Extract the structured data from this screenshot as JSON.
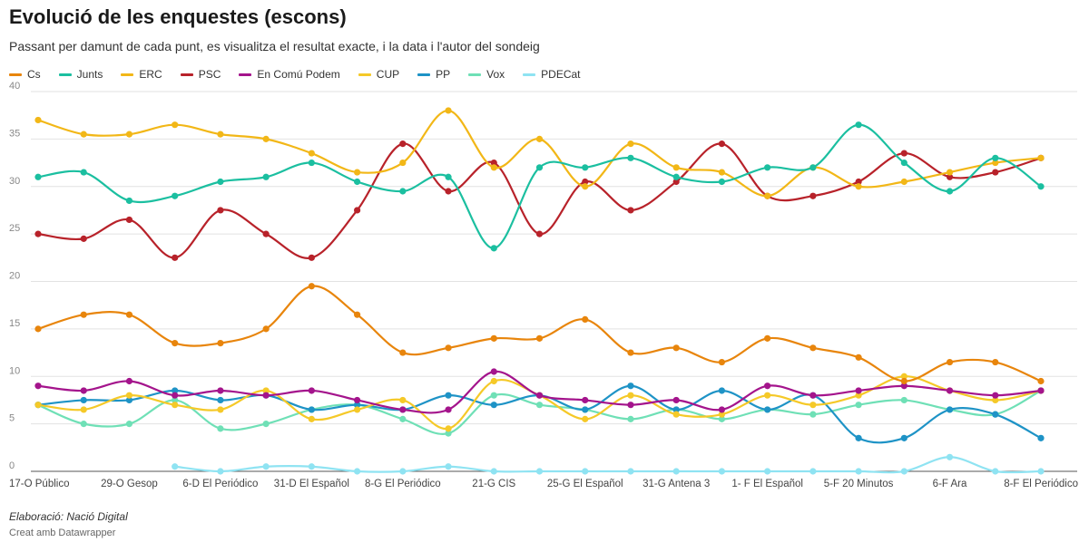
{
  "chart_data": {
    "type": "line",
    "title": "Evolució de les enquestes (escons)",
    "subtitle": "Passant per damunt de cada punt, es visualitza el resultat exacte, i la data i l'autor del sondeig",
    "ylim": [
      0,
      40
    ],
    "yticks": [
      0,
      5,
      10,
      15,
      20,
      25,
      30,
      35,
      40
    ],
    "grid": true,
    "legend_position": "top-left",
    "x_tick_labels": [
      "17-O Público",
      "29-O Gesop",
      "6-D El Periódico",
      "31-D El Español",
      "8-G El Periódico",
      "21-G CIS",
      "25-G El Español",
      "31-G Antena 3",
      "1- F El Español",
      "5-F 20 Minutos",
      "6-F Ara",
      "8-F El Periódico"
    ],
    "x_tick_indices": [
      0,
      2,
      4,
      6,
      8,
      10,
      12,
      14,
      16,
      18,
      20,
      22
    ],
    "series": [
      {
        "name": "Cs",
        "color": "#e8850c",
        "values": [
          15,
          16.5,
          16.5,
          13.5,
          13.5,
          15,
          19.5,
          16.5,
          12.5,
          13,
          14,
          14,
          16,
          12.5,
          13,
          11.5,
          14,
          13,
          12,
          9.5,
          11.5,
          11.5,
          9.5
        ]
      },
      {
        "name": "Junts",
        "color": "#1bbfa0",
        "values": [
          31,
          31.5,
          28.5,
          29,
          30.5,
          31,
          32.5,
          30.5,
          29.5,
          31,
          23.5,
          32,
          32,
          33,
          31,
          30.5,
          32,
          32,
          36.5,
          32.5,
          29.5,
          33,
          30
        ]
      },
      {
        "name": "ERC",
        "color": "#f2b717",
        "values": [
          37,
          35.5,
          35.5,
          36.5,
          35.5,
          35,
          33.5,
          31.5,
          32.5,
          38,
          32,
          35,
          30,
          34.5,
          32,
          31.5,
          29,
          32,
          30,
          30.5,
          31.5,
          32.5,
          33
        ]
      },
      {
        "name": "PSC",
        "color": "#b8222a",
        "values": [
          25,
          24.5,
          26.5,
          22.5,
          27.5,
          25,
          22.5,
          27.5,
          34.5,
          29.5,
          32.5,
          25,
          30.5,
          27.5,
          30.5,
          34.5,
          29,
          29,
          30.5,
          33.5,
          31,
          31.5,
          33
        ]
      },
      {
        "name": "En Comú Podem",
        "color": "#a4148c",
        "values": [
          9,
          8.5,
          9.5,
          8,
          8.5,
          8,
          8.5,
          7.5,
          6.5,
          6.5,
          10.5,
          8,
          7.5,
          7,
          7.5,
          6.5,
          9,
          8,
          8.5,
          9,
          8.5,
          8,
          8.5
        ]
      },
      {
        "name": "CUP",
        "color": "#f5c928",
        "values": [
          7,
          6.5,
          8,
          7,
          6.5,
          8.5,
          5.5,
          6.5,
          7.5,
          4.5,
          9.5,
          8,
          5.5,
          8,
          6,
          6,
          8,
          7,
          8,
          10,
          8.5,
          7.5,
          8.5
        ]
      },
      {
        "name": "PP",
        "color": "#1e93c6",
        "values": [
          7,
          7.5,
          7.5,
          8.5,
          7.5,
          8,
          6.5,
          7,
          6.5,
          8,
          7,
          8,
          6.5,
          9,
          6.5,
          8.5,
          6.5,
          8,
          3.5,
          3.5,
          6.5,
          6,
          3.5
        ]
      },
      {
        "name": "Vox",
        "color": "#6fe0b6",
        "values": [
          7,
          5,
          5,
          7.5,
          4.5,
          5,
          6.5,
          7,
          5.5,
          4,
          8,
          7,
          6.5,
          5.5,
          6.5,
          5.5,
          6.5,
          6,
          7,
          7.5,
          6.5,
          6,
          8.5
        ]
      },
      {
        "name": "PDECat",
        "color": "#8fe3f2",
        "values": [
          null,
          null,
          null,
          0.5,
          0,
          0.5,
          0.5,
          0,
          0,
          0.5,
          0,
          0,
          0,
          0,
          0,
          0,
          0,
          0,
          0,
          0,
          1.5,
          0,
          0
        ]
      }
    ]
  },
  "footer": {
    "credit": "Elaboració: Nació Digital",
    "made_with": "Creat amb Datawrapper"
  }
}
